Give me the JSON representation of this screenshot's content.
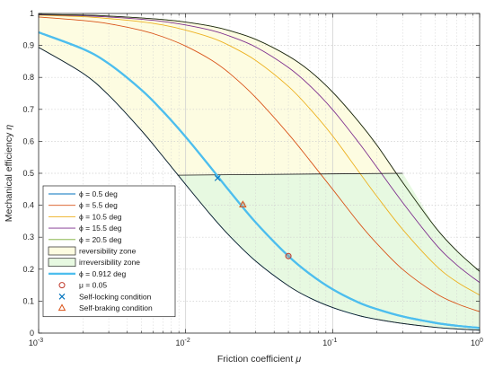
{
  "chart_data": {
    "type": "line",
    "xlabel_text": "Friction coefficient",
    "xlabel_symbol": "μ",
    "ylabel_text": "Mechanical efficiency",
    "ylabel_symbol": "η",
    "xscale": "log",
    "xlim": [
      0.001,
      1
    ],
    "ylim": [
      0,
      1
    ],
    "grid": true,
    "legend_position": "bottom-left",
    "x_ticks": [
      {
        "value": 0.001,
        "base": "10",
        "exp": "-3"
      },
      {
        "value": 0.01,
        "base": "10",
        "exp": "-2"
      },
      {
        "value": 0.1,
        "base": "10",
        "exp": "-1"
      },
      {
        "value": 1,
        "base": "10",
        "exp": "0"
      }
    ],
    "y_ticks": [
      "0",
      "0.1",
      "0.2",
      "0.3",
      "0.4",
      "0.5",
      "0.6",
      "0.7",
      "0.8",
      "0.9",
      "1"
    ],
    "x_points": [
      0.001,
      0.002,
      0.003,
      0.005,
      0.007,
      0.01,
      0.015,
      0.02,
      0.03,
      0.05,
      0.07,
      0.1,
      0.15,
      0.2,
      0.3,
      0.5,
      0.7,
      1
    ],
    "series": [
      {
        "name": "ϕ = 0.5 deg",
        "color": "#0072BD",
        "width": 0.9,
        "values": [
          0.894,
          0.813,
          0.744,
          0.634,
          0.553,
          0.465,
          0.367,
          0.303,
          0.225,
          0.148,
          0.11,
          0.08,
          0.055,
          0.043,
          0.03,
          0.018,
          0.013,
          0.009
        ]
      },
      {
        "name": "ϕ = 5.5 deg",
        "color": "#D95319",
        "width": 0.9,
        "values": [
          0.989,
          0.978,
          0.968,
          0.947,
          0.927,
          0.898,
          0.854,
          0.812,
          0.737,
          0.623,
          0.54,
          0.45,
          0.346,
          0.28,
          0.199,
          0.125,
          0.092,
          0.067
        ]
      },
      {
        "name": "ϕ = 10.5 deg",
        "color": "#EDB120",
        "width": 0.9,
        "values": [
          0.995,
          0.99,
          0.984,
          0.974,
          0.964,
          0.948,
          0.924,
          0.899,
          0.853,
          0.772,
          0.702,
          0.617,
          0.506,
          0.428,
          0.324,
          0.213,
          0.16,
          0.119
        ]
      },
      {
        "name": "ϕ = 15.5 deg",
        "color": "#7E2F8E",
        "width": 0.9,
        "values": [
          0.996,
          0.993,
          0.989,
          0.982,
          0.975,
          0.964,
          0.947,
          0.929,
          0.895,
          0.831,
          0.774,
          0.699,
          0.597,
          0.519,
          0.408,
          0.279,
          0.213,
          0.158
        ]
      },
      {
        "name": "ϕ = 20.5 deg",
        "color": "#77AC30",
        "width": 0.9,
        "values": [
          0.997,
          0.995,
          0.992,
          0.986,
          0.981,
          0.973,
          0.96,
          0.946,
          0.919,
          0.867,
          0.82,
          0.754,
          0.662,
          0.588,
          0.471,
          0.331,
          0.257,
          0.193
        ]
      },
      {
        "name": "ϕ = 0.912 deg",
        "color": "#4DBEEE",
        "width": 2.2,
        "values": [
          0.941,
          0.889,
          0.843,
          0.761,
          0.694,
          0.614,
          0.515,
          0.443,
          0.346,
          0.241,
          0.185,
          0.137,
          0.096,
          0.075,
          0.052,
          0.032,
          0.023,
          0.016
        ]
      }
    ],
    "upper_boundary": {
      "color": "#1a1a1a",
      "values": [
        0.997,
        0.995,
        0.992,
        0.986,
        0.981,
        0.973,
        0.96,
        0.946,
        0.919,
        0.867,
        0.82,
        0.754,
        0.662,
        0.588,
        0.471,
        0.331,
        0.257,
        0.193
      ]
    },
    "lower_boundary": {
      "color": "#1a1a1a",
      "values": [
        0.894,
        0.813,
        0.744,
        0.634,
        0.553,
        0.465,
        0.367,
        0.303,
        0.225,
        0.148,
        0.11,
        0.08,
        0.055,
        0.043,
        0.03,
        0.018,
        0.013,
        0.009
      ]
    },
    "divider": {
      "color": "#1a1a1a",
      "points": [
        {
          "x": 0.0088,
          "y": 0.494
        },
        {
          "x": 0.3,
          "y": 0.5
        },
        {
          "x": 0.3,
          "y": 0.5
        }
      ]
    },
    "reversibility_fill": "#FDFCE1",
    "irreversibility_fill": "#E7F9E1",
    "markers": [
      {
        "name": "μ = 0.05",
        "symbol": "circle",
        "color": "#C0392B",
        "x": 0.05,
        "y": 0.241
      },
      {
        "name": "Self-locking condition",
        "symbol": "x",
        "color": "#0072BD",
        "x": 0.0165,
        "y": 0.485
      },
      {
        "name": "Self-braking condition",
        "symbol": "triangle",
        "color": "#D95319",
        "x": 0.0245,
        "y": 0.402
      }
    ],
    "legend": [
      {
        "label": "ϕ = 0.5 deg",
        "kind": "line",
        "color": "#0072BD",
        "width": 0.9
      },
      {
        "label": "ϕ = 5.5 deg",
        "kind": "line",
        "color": "#D95319",
        "width": 0.9
      },
      {
        "label": "ϕ = 10.5 deg",
        "kind": "line",
        "color": "#EDB120",
        "width": 0.9
      },
      {
        "label": "ϕ = 15.5 deg",
        "kind": "line",
        "color": "#7E2F8E",
        "width": 0.9
      },
      {
        "label": "ϕ = 20.5 deg",
        "kind": "line",
        "color": "#77AC30",
        "width": 0.9
      },
      {
        "label": "reversibility zone",
        "kind": "patch",
        "color": "#FDFCE1"
      },
      {
        "label": "irreversibility zone",
        "kind": "patch",
        "color": "#E7F9E1"
      },
      {
        "label": "ϕ = 0.912 deg",
        "kind": "line",
        "color": "#4DBEEE",
        "width": 2.2
      },
      {
        "label": "μ = 0.05",
        "kind": "circle",
        "color": "#C0392B"
      },
      {
        "label": "Self-locking condition",
        "kind": "x",
        "color": "#0072BD"
      },
      {
        "label": "Self-braking condition",
        "kind": "triangle",
        "color": "#D95319"
      }
    ]
  }
}
